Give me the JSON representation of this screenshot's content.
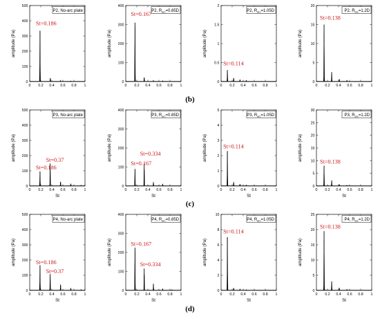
{
  "row_labels": [
    "(b)",
    "(c)",
    "(d)"
  ],
  "colors": {
    "signal": "#000000",
    "annotation": "#cc1a1a",
    "frame": "#000000"
  },
  "chart_data": [
    {
      "type": "line",
      "title": "P2, No-arc plate",
      "title_parts": [
        "P2, No-arc plate"
      ],
      "xlabel": "",
      "ylabel": "amplitude (Pa)",
      "xlim": [
        0,
        1
      ],
      "ylim": [
        0,
        500
      ],
      "yticks": [
        0,
        100,
        200,
        300,
        400,
        500
      ],
      "peaks": [
        [
          0.186,
          335
        ],
        [
          0.372,
          22
        ],
        [
          0.558,
          6
        ],
        [
          0.744,
          3
        ]
      ],
      "annotations": [
        {
          "text": "St=0.186",
          "x": 0.186,
          "y": 370
        }
      ]
    },
    {
      "type": "line",
      "title": "P2, Rarc=0.85D",
      "title_parts": [
        "P2, R",
        "arc",
        "=0.85D"
      ],
      "xlabel": "",
      "ylabel": "amplitude (Pa)",
      "xlim": [
        0,
        1
      ],
      "ylim": [
        0,
        400
      ],
      "yticks": [
        0,
        100,
        200,
        300,
        400
      ],
      "peaks": [
        [
          0.167,
          310
        ],
        [
          0.334,
          22
        ],
        [
          0.501,
          5
        ],
        [
          0.668,
          3
        ]
      ],
      "annotations": [
        {
          "text": "St=0.167",
          "x": 0.167,
          "y": 345
        }
      ]
    },
    {
      "type": "line",
      "title": "P2, Rarc=1.05D",
      "title_parts": [
        "P2, R",
        "arc",
        "=1.05D"
      ],
      "xlabel": "",
      "ylabel": "amplitude (Pa)",
      "xlim": [
        0,
        1
      ],
      "ylim": [
        0,
        2
      ],
      "yticks": [
        0,
        0.5,
        1.0,
        1.5,
        2.0
      ],
      "peaks": [
        [
          0.114,
          0.3
        ],
        [
          0.228,
          0.09
        ],
        [
          0.342,
          0.05
        ],
        [
          0.456,
          0.03
        ]
      ],
      "annotations": [
        {
          "text": "St=0.114",
          "x": 0.114,
          "y": 0.43
        }
      ]
    },
    {
      "type": "line",
      "title": "P2, Rarc=1.2D",
      "title_parts": [
        "P2, R",
        "arc",
        "=1.2D"
      ],
      "xlabel": "",
      "ylabel": "amplitude (Pa)",
      "xlim": [
        0,
        1
      ],
      "ylim": [
        0,
        20
      ],
      "yticks": [
        0,
        5,
        10,
        15,
        20
      ],
      "peaks": [
        [
          0.138,
          15
        ],
        [
          0.276,
          2.5
        ],
        [
          0.414,
          0.6
        ],
        [
          0.552,
          0.3
        ]
      ],
      "annotations": [
        {
          "text": "St=0.138",
          "x": 0.138,
          "y": 16.3
        }
      ]
    },
    {
      "type": "line",
      "title": "P3, No-arc plate",
      "title_parts": [
        "P3, No-arc plate"
      ],
      "xlabel": "St",
      "ylabel": "amplitude (Pa)",
      "xlim": [
        0,
        1
      ],
      "ylim": [
        0,
        500
      ],
      "yticks": [
        0,
        100,
        200,
        300,
        400,
        500
      ],
      "peaks": [
        [
          0.186,
          95
        ],
        [
          0.37,
          148
        ],
        [
          0.558,
          28
        ],
        [
          0.744,
          15
        ],
        [
          0.93,
          5
        ]
      ],
      "annotations": [
        {
          "text": "St=0.37",
          "x": 0.37,
          "y": 158
        },
        {
          "text": "St=0.186",
          "x": 0.186,
          "y": 108
        }
      ]
    },
    {
      "type": "line",
      "title": "P3, Rarc=0.85D",
      "title_parts": [
        "P3, R",
        "arc",
        "=0.85D"
      ],
      "xlabel": "St",
      "ylabel": "amplitude (Pa)",
      "xlim": [
        0,
        1
      ],
      "ylim": [
        0,
        400
      ],
      "yticks": [
        0,
        100,
        200,
        300,
        400
      ],
      "peaks": [
        [
          0.167,
          90
        ],
        [
          0.334,
          118
        ],
        [
          0.501,
          20
        ],
        [
          0.668,
          10
        ]
      ],
      "annotations": [
        {
          "text": "St=0.334",
          "x": 0.334,
          "y": 160
        },
        {
          "text": "St=0.167",
          "x": 0.167,
          "y": 110
        }
      ]
    },
    {
      "type": "line",
      "title": "P3, Rarc=1.05D",
      "title_parts": [
        "P3, R",
        "arc",
        "=1.05D"
      ],
      "xlabel": "St",
      "ylabel": "amplitude (Pa)",
      "xlim": [
        0,
        1
      ],
      "ylim": [
        0,
        5
      ],
      "yticks": [
        0,
        1,
        2,
        3,
        4,
        5
      ],
      "peaks": [
        [
          0.114,
          2.3
        ],
        [
          0.228,
          0.25
        ],
        [
          0.342,
          0.12
        ],
        [
          0.456,
          0.06
        ]
      ],
      "annotations": [
        {
          "text": "St=0.114",
          "x": 0.114,
          "y": 2.48
        }
      ]
    },
    {
      "type": "line",
      "title": "P3, Rarc=1.2D",
      "title_parts": [
        "P3, R",
        "arc",
        "=1.2D"
      ],
      "xlabel": "St",
      "ylabel": "amplitude (Pa)",
      "xlim": [
        0,
        1
      ],
      "ylim": [
        0,
        30
      ],
      "yticks": [
        0,
        5,
        10,
        15,
        20,
        25,
        30
      ],
      "peaks": [
        [
          0.138,
          8
        ],
        [
          0.276,
          2.2
        ],
        [
          0.414,
          0.5
        ],
        [
          0.552,
          0.25
        ]
      ],
      "annotations": [
        {
          "text": "St=0.138",
          "x": 0.138,
          "y": 8.8
        }
      ]
    },
    {
      "type": "line",
      "title": "P4, No-arc plate",
      "title_parts": [
        "P4, No-arc plate"
      ],
      "xlabel": "St",
      "ylabel": "amplitude (Pa)",
      "xlim": [
        0,
        1
      ],
      "ylim": [
        0,
        500
      ],
      "yticks": [
        0,
        100,
        200,
        300,
        400,
        500
      ],
      "peaks": [
        [
          0.186,
          165
        ],
        [
          0.37,
          108
        ],
        [
          0.558,
          38
        ],
        [
          0.744,
          15
        ],
        [
          0.93,
          5
        ]
      ],
      "annotations": [
        {
          "text": "St=0.186",
          "x": 0.186,
          "y": 172
        },
        {
          "text": "St=0.37",
          "x": 0.37,
          "y": 114
        }
      ]
    },
    {
      "type": "line",
      "title": "P4, Rarc=0.85D",
      "title_parts": [
        "P4, R",
        "arc",
        "=0.85D"
      ],
      "xlabel": "St",
      "ylabel": "amplitude (Pa)",
      "xlim": [
        0,
        1
      ],
      "ylim": [
        0,
        400
      ],
      "yticks": [
        0,
        100,
        200,
        300,
        400
      ],
      "peaks": [
        [
          0.167,
          225
        ],
        [
          0.334,
          115
        ],
        [
          0.501,
          35
        ],
        [
          0.668,
          8
        ],
        [
          0.835,
          3
        ]
      ],
      "annotations": [
        {
          "text": "St=0.167",
          "x": 0.167,
          "y": 235
        },
        {
          "text": "St=0.334",
          "x": 0.334,
          "y": 128
        }
      ]
    },
    {
      "type": "line",
      "title": "P4, Rarc=1.05D",
      "title_parts": [
        "P4, R",
        "arc",
        "=1.05D"
      ],
      "xlabel": "St",
      "ylabel": "amplitude (Pa)",
      "xlim": [
        0,
        1
      ],
      "ylim": [
        0,
        10
      ],
      "yticks": [
        0,
        2,
        4,
        6,
        8,
        10
      ],
      "peaks": [
        [
          0.114,
          7.0
        ],
        [
          0.228,
          0.3
        ],
        [
          0.342,
          0.15
        ],
        [
          0.456,
          0.08
        ]
      ],
      "annotations": [
        {
          "text": "St=0.114",
          "x": 0.114,
          "y": 7.5
        }
      ]
    },
    {
      "type": "line",
      "title": "P4, Rarc=1.2D",
      "title_parts": [
        "P4, R",
        "arc",
        "=1.2D"
      ],
      "xlabel": "St",
      "ylabel": "amplitude (Pa)",
      "xlim": [
        0,
        1
      ],
      "ylim": [
        0,
        25
      ],
      "yticks": [
        0,
        5,
        10,
        15,
        20,
        25
      ],
      "peaks": [
        [
          0.138,
          19.5
        ],
        [
          0.276,
          3.0
        ],
        [
          0.414,
          0.8
        ],
        [
          0.552,
          0.3
        ]
      ],
      "annotations": [
        {
          "text": "St=0.138",
          "x": 0.138,
          "y": 20.3
        }
      ]
    }
  ]
}
